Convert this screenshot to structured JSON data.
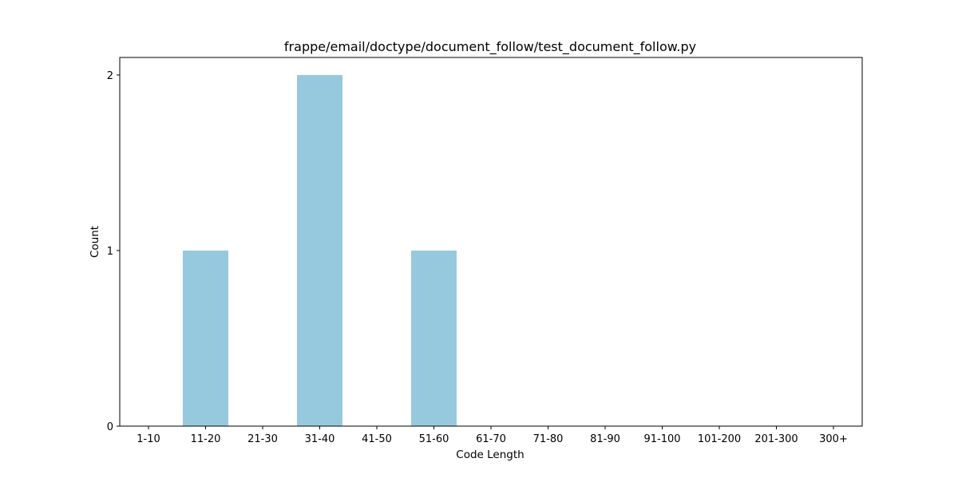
{
  "chart_data": {
    "type": "bar",
    "title": "frappe/email/doctype/document_follow/test_document_follow.py",
    "xlabel": "Code Length",
    "ylabel": "Count",
    "categories": [
      "1-10",
      "11-20",
      "21-30",
      "31-40",
      "41-50",
      "51-60",
      "61-70",
      "71-80",
      "81-90",
      "91-100",
      "101-200",
      "201-300",
      "300+"
    ],
    "values": [
      0,
      1,
      0,
      2,
      0,
      1,
      0,
      0,
      0,
      0,
      0,
      0,
      0
    ],
    "ylim": [
      0,
      2.1
    ],
    "yticks": [
      0,
      1,
      2
    ],
    "grid": false,
    "bar_color": "#96c9de"
  }
}
